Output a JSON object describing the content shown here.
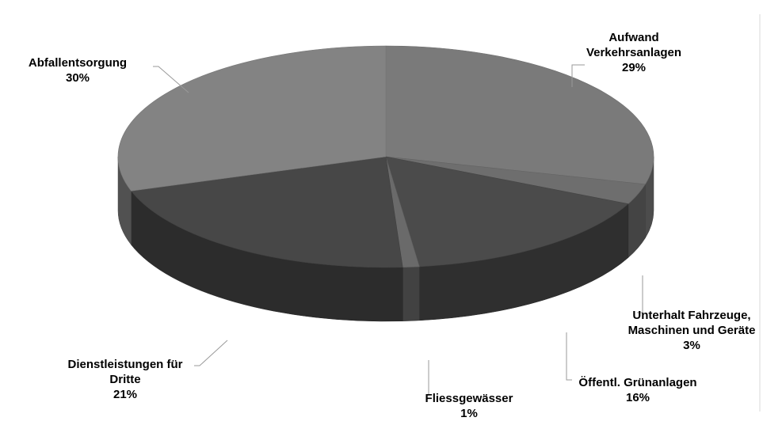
{
  "chart_data": {
    "type": "pie",
    "style": "3d-exploded",
    "slices": [
      {
        "label_lines": [
          "Aufwand",
          "Verkehrsanlagen"
        ],
        "value": 29,
        "pct_text": "29%",
        "color": "#7a7a7a"
      },
      {
        "label_lines": [
          "Unterhalt Fahrzeuge,",
          "Maschinen und Geräte"
        ],
        "value": 3,
        "pct_text": "3%",
        "color": "#6e6e6e"
      },
      {
        "label_lines": [
          "Öffentl. Grünanlagen"
        ],
        "value": 16,
        "pct_text": "16%",
        "color": "#4b4b4b"
      },
      {
        "label_lines": [
          "Fliessgewässer"
        ],
        "value": 1,
        "pct_text": "1%",
        "color": "#6a6a6a"
      },
      {
        "label_lines": [
          "Dienstleistungen für",
          "Dritte"
        ],
        "value": 21,
        "pct_text": "21%",
        "color": "#474747"
      },
      {
        "label_lines": [
          "Abfallentsorgung"
        ],
        "value": 30,
        "pct_text": "30%",
        "color": "#838383"
      }
    ],
    "legend": "none"
  }
}
